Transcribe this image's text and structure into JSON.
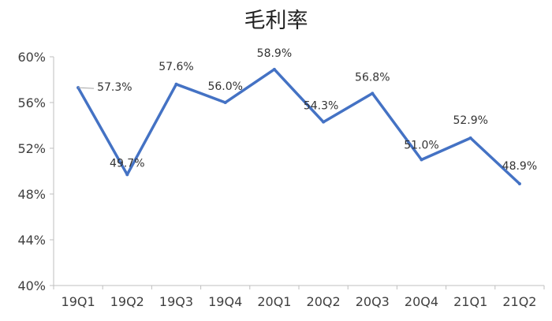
{
  "chart_data": {
    "type": "line",
    "title": "毛利率",
    "categories": [
      "19Q1",
      "19Q2",
      "19Q3",
      "19Q4",
      "20Q1",
      "20Q2",
      "20Q3",
      "20Q4",
      "21Q1",
      "21Q2"
    ],
    "series": [
      {
        "values": [
          57.3,
          49.7,
          57.6,
          56.0,
          58.9,
          54.3,
          56.8,
          51.0,
          52.9,
          48.9
        ],
        "labels": [
          "57.3%",
          "49.7%",
          "57.6%",
          "56.0%",
          "58.9%",
          "54.3%",
          "56.8%",
          "51.0%",
          "52.9%",
          "48.9%"
        ],
        "color": "#4472C4"
      }
    ],
    "ylim": [
      40,
      60
    ],
    "yticks": [
      40,
      44,
      48,
      52,
      56,
      60
    ],
    "ytick_labels": [
      "40%",
      "44%",
      "48%",
      "52%",
      "56%",
      "60%"
    ],
    "xlabel": "",
    "ylabel": "",
    "grid": false,
    "legend": "none"
  }
}
